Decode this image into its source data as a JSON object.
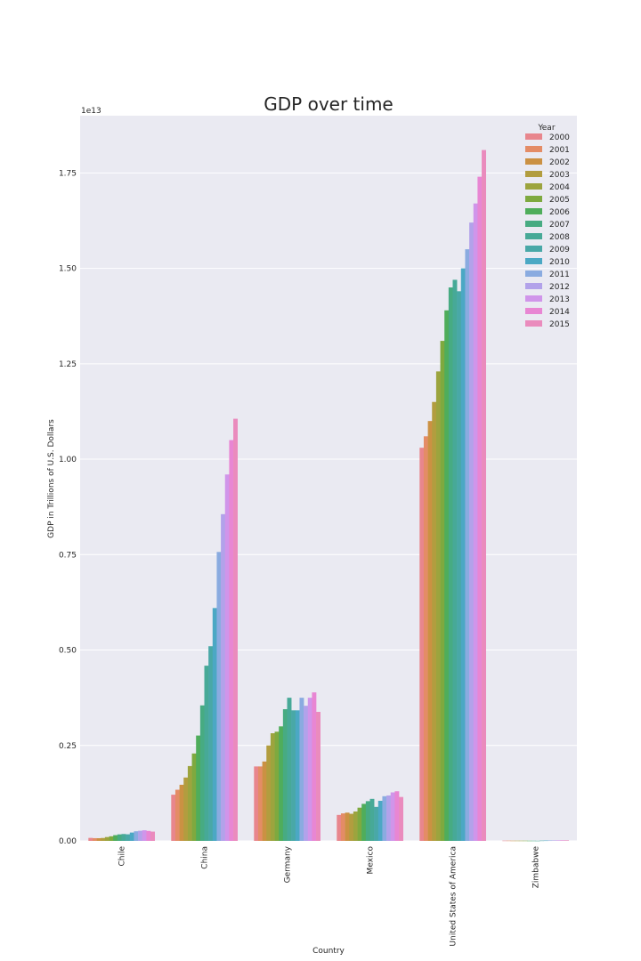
{
  "chart_data": {
    "type": "bar",
    "title": "GDP over time",
    "xlabel": "Country",
    "ylabel": "GDP in Trillions of U.S. Dollars",
    "y_offset_label": "1e13",
    "ylim": [
      0,
      1.9
    ],
    "yticks": [
      "0.00",
      "0.25",
      "0.50",
      "0.75",
      "1.00",
      "1.25",
      "1.50",
      "1.75"
    ],
    "grid": true,
    "legend": {
      "title": "Year",
      "placement": "top-right"
    },
    "categories": [
      "Chile",
      "China",
      "Germany",
      "Mexico",
      "United States of America",
      "Zimbabwe"
    ],
    "series": [
      {
        "name": "2000",
        "color": "#e8868d",
        "values": [
          0.0078,
          0.121,
          0.195,
          0.068,
          1.03,
          0.0007
        ]
      },
      {
        "name": "2001",
        "color": "#e48c66",
        "values": [
          0.0071,
          0.134,
          0.195,
          0.072,
          1.06,
          0.0007
        ]
      },
      {
        "name": "2002",
        "color": "#cb9143",
        "values": [
          0.007,
          0.147,
          0.208,
          0.074,
          1.1,
          0.0006
        ]
      },
      {
        "name": "2003",
        "color": "#b29d3f",
        "values": [
          0.0076,
          0.166,
          0.25,
          0.071,
          1.15,
          0.0006
        ]
      },
      {
        "name": "2004",
        "color": "#9ca43e",
        "values": [
          0.01,
          0.196,
          0.282,
          0.077,
          1.23,
          0.0006
        ]
      },
      {
        "name": "2005",
        "color": "#7ea93f",
        "values": [
          0.012,
          0.229,
          0.286,
          0.087,
          1.31,
          0.0006
        ]
      },
      {
        "name": "2006",
        "color": "#4fad5b",
        "values": [
          0.015,
          0.276,
          0.3,
          0.097,
          1.39,
          0.0005
        ]
      },
      {
        "name": "2007",
        "color": "#47ab82",
        "values": [
          0.017,
          0.355,
          0.345,
          0.104,
          1.45,
          0.0005
        ]
      },
      {
        "name": "2008",
        "color": "#47a997",
        "values": [
          0.018,
          0.459,
          0.375,
          0.11,
          1.47,
          0.0004
        ]
      },
      {
        "name": "2009",
        "color": "#49a8a7",
        "values": [
          0.0172,
          0.51,
          0.342,
          0.089,
          1.44,
          0.0008
        ]
      },
      {
        "name": "2010",
        "color": "#4ba8c4",
        "values": [
          0.0218,
          0.61,
          0.342,
          0.105,
          1.5,
          0.001
        ]
      },
      {
        "name": "2011",
        "color": "#8aabe0",
        "values": [
          0.0252,
          0.757,
          0.375,
          0.117,
          1.55,
          0.0011
        ]
      },
      {
        "name": "2012",
        "color": "#b2a2ea",
        "values": [
          0.0265,
          0.856,
          0.354,
          0.119,
          1.62,
          0.0012
        ]
      },
      {
        "name": "2013",
        "color": "#d095ea",
        "values": [
          0.0278,
          0.96,
          0.375,
          0.127,
          1.67,
          0.0013
        ]
      },
      {
        "name": "2014",
        "color": "#e886d3",
        "values": [
          0.0261,
          1.05,
          0.389,
          0.13,
          1.74,
          0.0014
        ]
      },
      {
        "name": "2015",
        "color": "#ea8bbd",
        "values": [
          0.0243,
          1.106,
          0.338,
          0.115,
          1.81,
          0.0014
        ]
      }
    ]
  }
}
